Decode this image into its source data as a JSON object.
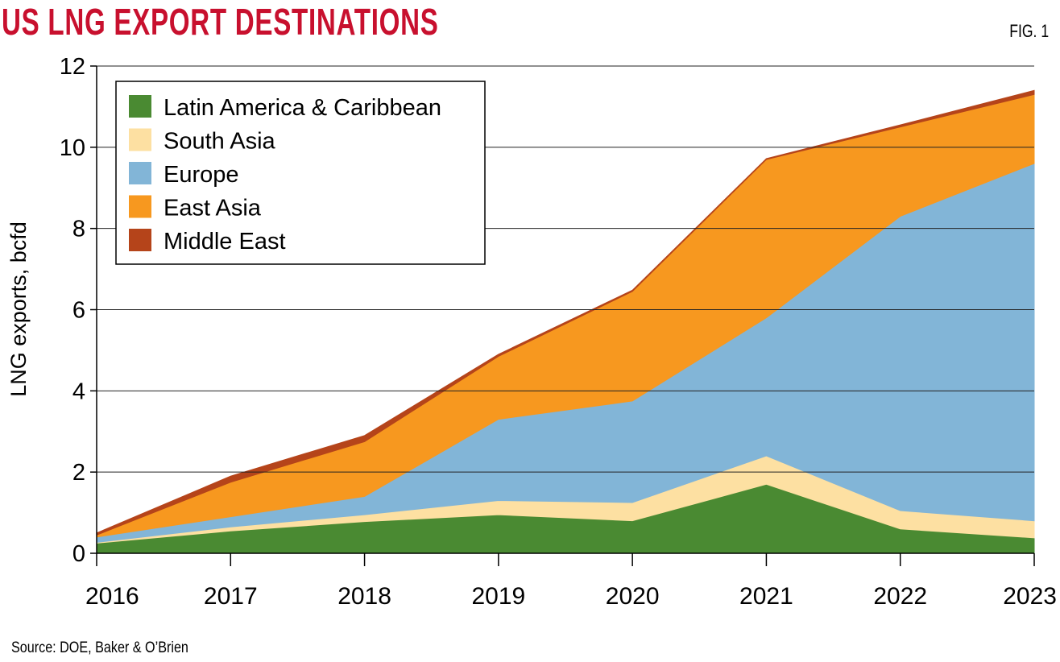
{
  "title": "US LNG EXPORT DESTINATIONS",
  "figure_label": "FIG. 1",
  "source": "Source: DOE, Baker & O’Brien",
  "chart_data": {
    "type": "area",
    "stacked": true,
    "title": "US LNG EXPORT DESTINATIONS",
    "xlabel": "",
    "ylabel": "LNG exports, bcfd",
    "x": [
      "2016",
      "2017",
      "2018",
      "2019",
      "2020",
      "2021",
      "2022",
      "2023"
    ],
    "ylim": [
      0,
      12
    ],
    "yticks": [
      0,
      2,
      4,
      6,
      8,
      10,
      12
    ],
    "grid": true,
    "legend_placement": "top-left",
    "series": [
      {
        "name": "Latin America & Caribbean",
        "color": "#4a8a32",
        "values": [
          0.25,
          0.55,
          0.78,
          0.95,
          0.8,
          1.7,
          0.6,
          0.38
        ]
      },
      {
        "name": "South Asia",
        "color": "#fde0a2",
        "values": [
          0.02,
          0.1,
          0.17,
          0.35,
          0.45,
          0.7,
          0.45,
          0.42
        ]
      },
      {
        "name": "Europe",
        "color": "#82b5d7",
        "values": [
          0.13,
          0.25,
          0.45,
          2.0,
          2.5,
          3.4,
          7.25,
          8.8
        ]
      },
      {
        "name": "East Asia",
        "color": "#f7981f",
        "values": [
          0.05,
          0.85,
          1.35,
          1.55,
          2.7,
          3.9,
          2.2,
          1.7
        ]
      },
      {
        "name": "Middle East",
        "color": "#b5441a",
        "values": [
          0.05,
          0.15,
          0.15,
          0.05,
          0.03,
          0.02,
          0.05,
          0.1
        ]
      }
    ]
  }
}
